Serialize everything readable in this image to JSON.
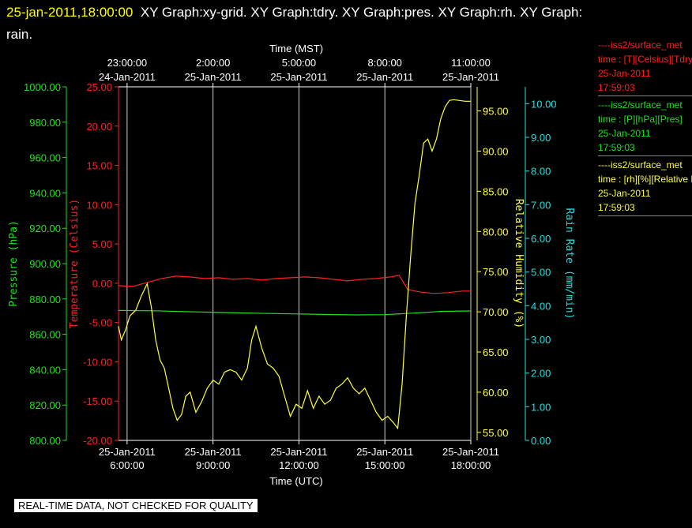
{
  "header": {
    "datetime": "25-jan-2011,18:00:00",
    "graphs_line1": "XY Graph:xy-grid.  XY Graph:tdry.  XY Graph:pres.  XY Graph:rh.  XY Graph:",
    "graphs_line2": "rain."
  },
  "legend": [
    {
      "name": "----iss2/surface_met",
      "desc": "time : [T][Celsius][Tdry]",
      "date": "25-Jan-2011",
      "time": "17:59:03",
      "color": "#ff2020"
    },
    {
      "name": "----iss2/surface_met",
      "desc": "time : [P][hPa][Pres]",
      "date": "25-Jan-2011",
      "time": "17:59:03",
      "color": "#20e020"
    },
    {
      "name": "----iss2/surface_met",
      "desc": "time : [rh][%][Relative Humidity]",
      "date": "25-Jan-2011",
      "time": "17:59:03",
      "color": "#ffff40"
    }
  ],
  "warning": "REAL-TIME DATA, NOT CHECKED FOR QUALITY",
  "chart_data": {
    "type": "line",
    "x_unit": "hours UTC on 25-Jan-2011",
    "xlim": [
      5.7,
      18.0
    ],
    "grid": true,
    "bottom_axis": {
      "title": "Time (UTC)",
      "ticks": [
        {
          "x": 6,
          "date": "25-Jan-2011",
          "time": "6:00:00"
        },
        {
          "x": 9,
          "date": "25-Jan-2011",
          "time": "9:00:00"
        },
        {
          "x": 12,
          "date": "25-Jan-2011",
          "time": "12:00:00"
        },
        {
          "x": 15,
          "date": "25-Jan-2011",
          "time": "15:00:00"
        },
        {
          "x": 18,
          "date": "25-Jan-2011",
          "time": "18:00:00"
        }
      ]
    },
    "top_axis": {
      "title": "Time (MST)",
      "ticks": [
        {
          "x": 6,
          "time": "23:00:00",
          "date": "24-Jan-2011"
        },
        {
          "x": 9,
          "time": "2:00:00",
          "date": "25-Jan-2011"
        },
        {
          "x": 12,
          "time": "5:00:00",
          "date": "25-Jan-2011"
        },
        {
          "x": 15,
          "time": "8:00:00",
          "date": "25-Jan-2011"
        },
        {
          "x": 18,
          "time": "11:00:00",
          "date": "25-Jan-2011"
        }
      ]
    },
    "y_axes": {
      "pressure": {
        "title": "Pressure (hPa)",
        "color": "#20e020",
        "ylim": [
          800,
          1000
        ],
        "ticks": [
          "800.00",
          "820.00",
          "840.00",
          "860.00",
          "880.00",
          "900.00",
          "920.00",
          "940.00",
          "960.00",
          "980.00",
          "1000.00"
        ]
      },
      "temperature": {
        "title": "Temperature (Celsius)",
        "color": "#ff2020",
        "ylim": [
          -20,
          25
        ],
        "ticks": [
          "-20.00",
          "-15.00",
          "-10.00",
          "-5.00",
          "0.00",
          "5.00",
          "10.00",
          "15.00",
          "20.00",
          "25.00"
        ]
      },
      "humidity": {
        "title": "Relative Humidity (%)",
        "color": "#ffff40",
        "ylim": [
          54,
          98
        ],
        "ticks": [
          "55.00",
          "60.00",
          "65.00",
          "70.00",
          "75.00",
          "80.00",
          "85.00",
          "90.00",
          "95.00"
        ]
      },
      "rain": {
        "title": "Rain Rate (mm/min)",
        "color": "#20e0e0",
        "ylim": [
          0,
          10.5
        ],
        "ticks": [
          "0.00",
          "1.00",
          "2.00",
          "3.00",
          "4.00",
          "5.00",
          "6.00",
          "7.00",
          "8.00",
          "9.00",
          "10.00"
        ]
      }
    },
    "series": [
      {
        "name": "----iss2/surface_met time : [T][Celsius][Tdry]",
        "axis": "temperature",
        "color": "#ff2020",
        "x": [
          5.7,
          6.2,
          6.7,
          7.2,
          7.7,
          8.2,
          8.7,
          9.2,
          9.7,
          10.2,
          10.7,
          11.2,
          11.7,
          12.2,
          12.7,
          13.2,
          13.7,
          14.2,
          14.7,
          15.2,
          15.5,
          15.8,
          16.2,
          16.7,
          17.2,
          17.7,
          18.0
        ],
        "values": [
          -0.3,
          -0.4,
          0.1,
          0.6,
          0.9,
          0.8,
          0.6,
          0.7,
          0.5,
          0.6,
          0.4,
          0.6,
          0.7,
          0.8,
          0.7,
          0.5,
          0.3,
          0.5,
          0.6,
          0.8,
          1.0,
          -0.8,
          -1.1,
          -1.3,
          -1.2,
          -1.0,
          -1.0
        ]
      },
      {
        "name": "----iss2/surface_met time : [P][hPa][Pres]",
        "axis": "pressure",
        "color": "#20e020",
        "x": [
          5.7,
          7.0,
          8.0,
          9.0,
          10.0,
          11.0,
          12.0,
          13.0,
          14.0,
          15.0,
          16.0,
          17.0,
          18.0
        ],
        "values": [
          873.5,
          873.3,
          872.8,
          872.5,
          872.1,
          871.8,
          871.5,
          871.2,
          871.0,
          871.1,
          872.0,
          873.0,
          873.2
        ]
      },
      {
        "name": "----iss2/surface_met time : [rh][%][Relative Humidity]",
        "axis": "humidity",
        "color": "#ffff40",
        "x": [
          5.7,
          5.8,
          5.95,
          6.1,
          6.3,
          6.5,
          6.7,
          6.85,
          7.0,
          7.15,
          7.3,
          7.45,
          7.6,
          7.75,
          7.9,
          8.05,
          8.2,
          8.4,
          8.6,
          8.8,
          9.0,
          9.2,
          9.4,
          9.6,
          9.8,
          10.0,
          10.2,
          10.35,
          10.5,
          10.7,
          10.9,
          11.1,
          11.3,
          11.5,
          11.7,
          11.9,
          12.1,
          12.3,
          12.5,
          12.7,
          12.9,
          13.1,
          13.3,
          13.5,
          13.7,
          13.9,
          14.1,
          14.3,
          14.5,
          14.7,
          14.9,
          15.1,
          15.3,
          15.45,
          15.6,
          15.75,
          15.9,
          16.05,
          16.2,
          16.35,
          16.5,
          16.65,
          16.8,
          16.95,
          17.1,
          17.25,
          17.4,
          17.6,
          17.8,
          18.0
        ],
        "values": [
          68.2,
          66.5,
          67.8,
          69.5,
          70.2,
          72.0,
          73.5,
          70.5,
          66.5,
          64.0,
          63.0,
          60.5,
          58.0,
          56.5,
          57.2,
          59.5,
          60.0,
          57.5,
          58.8,
          60.5,
          61.5,
          61.0,
          62.5,
          62.8,
          62.5,
          61.5,
          63.0,
          66.5,
          68.2,
          65.5,
          63.5,
          63.0,
          62.0,
          59.5,
          57.0,
          58.5,
          58.0,
          60.2,
          58.0,
          59.5,
          58.5,
          59.0,
          60.5,
          61.0,
          61.8,
          60.5,
          59.8,
          60.5,
          59.0,
          57.5,
          56.5,
          57.0,
          56.2,
          55.5,
          61.0,
          69.5,
          77.0,
          83.5,
          87.0,
          91.0,
          91.5,
          90.0,
          91.5,
          94.0,
          95.5,
          96.3,
          96.4,
          96.3,
          96.2,
          96.2
        ]
      }
    ]
  }
}
